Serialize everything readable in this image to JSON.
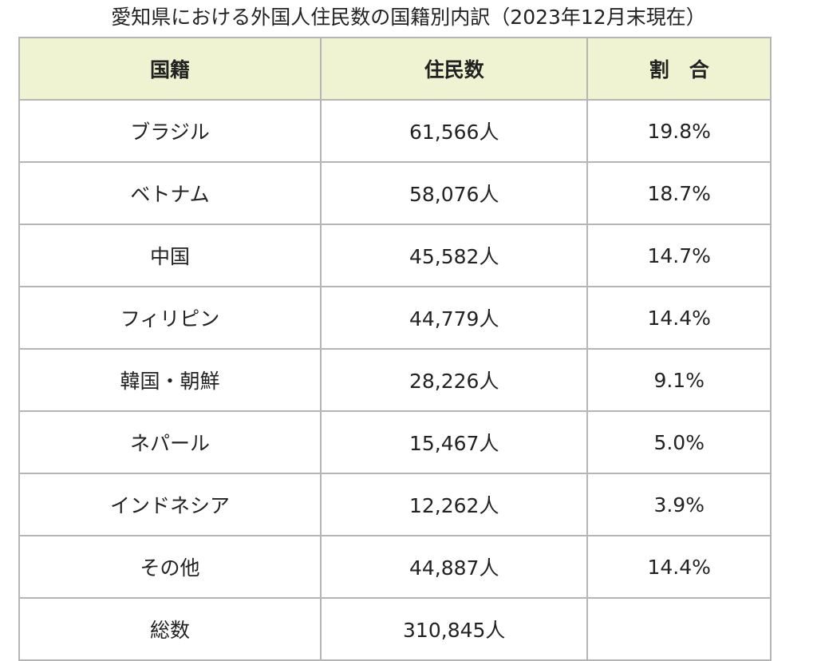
{
  "title": "愛知県における外国人住民数の国籍別内訳（2023年12月末現在）",
  "headers": [
    "国籍",
    "住民数",
    "割　合"
  ],
  "rows": [
    {
      "nationality": "ブラジル",
      "residents": "61,566人",
      "share": "19.8%"
    },
    {
      "nationality": "ベトナム",
      "residents": "58,076人",
      "share": "18.7%"
    },
    {
      "nationality": "中国",
      "residents": "45,582人",
      "share": "14.7%"
    },
    {
      "nationality": "フィリピン",
      "residents": "44,779人",
      "share": "14.4%"
    },
    {
      "nationality": "韓国・朝鮮",
      "residents": "28,226人",
      "share": "9.1%"
    },
    {
      "nationality": "ネパール",
      "residents": "15,467人",
      "share": "5.0%"
    },
    {
      "nationality": "インドネシア",
      "residents": "12,262人",
      "share": "3.9%"
    },
    {
      "nationality": "その他",
      "residents": "44,887人",
      "share": "14.4%"
    },
    {
      "nationality": "総数",
      "residents": "310,845人",
      "share": ""
    }
  ],
  "colors": {
    "header_bg": "#eff3d1",
    "border": "#b5b5b5"
  }
}
